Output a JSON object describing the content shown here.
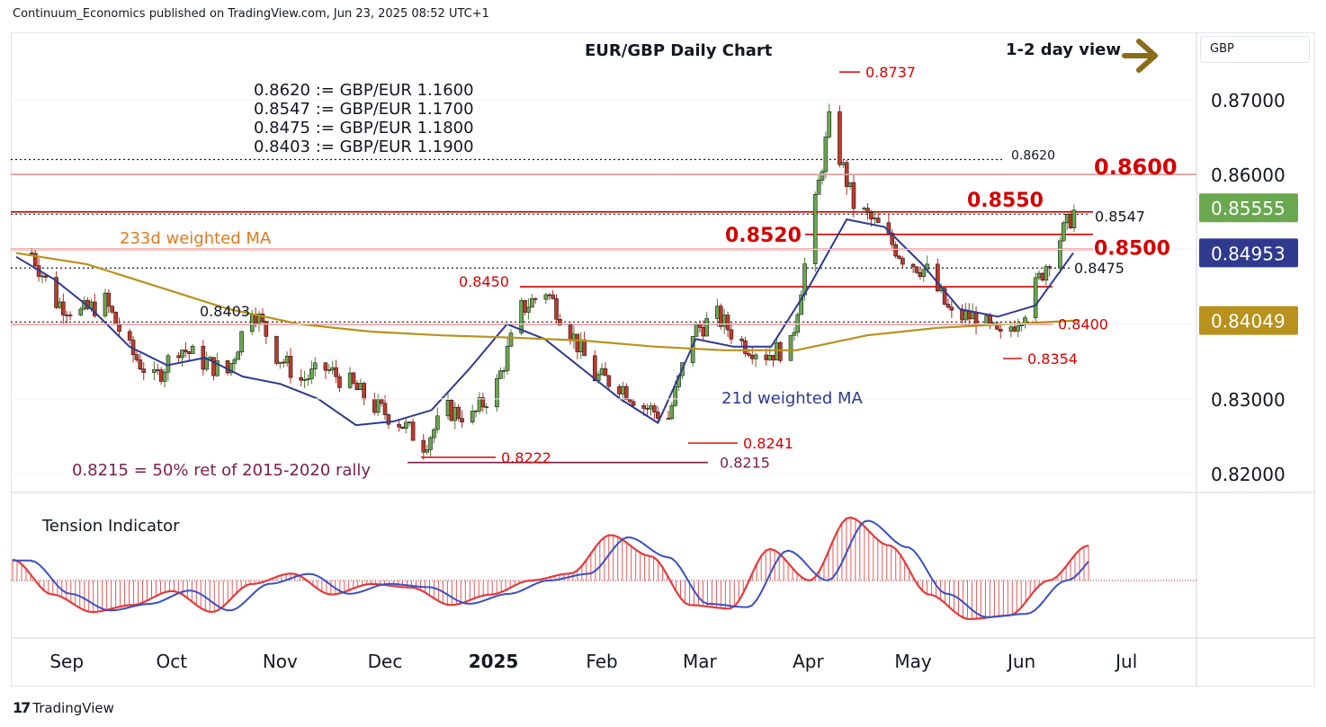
{
  "header": {
    "text": "Continuum_Economics published on TradingView.com, Jun 23, 2025 08:52 UTC+1"
  },
  "footer": {
    "brand": "TradingView",
    "logo_icon": "tradingview-logo-icon"
  },
  "symbol_box": {
    "currency": "GBP"
  },
  "annotations": {
    "title": "EUR/GBP Daily Chart",
    "view": "1-2 day view",
    "view_icon": "arrow-right-icon",
    "conversions": [
      "0.8620 := GBP/EUR 1.1600",
      "0.8547 := GBP/EUR 1.1700",
      "0.8475 := GBP/EUR 1.1800",
      "0.8403 := GBP/EUR 1.1900"
    ],
    "ma233_label": "233d weighted MA",
    "ma21_label": "21d weighted MA",
    "retracement_note": "0.8215 = 50% ret of 2015-2020 rally",
    "tension_label": "Tension Indicator"
  },
  "colors": {
    "bull": "#4e7c35",
    "bear": "#b22424",
    "ma21": "#2f3a8f",
    "ma233": "#b8921c",
    "resistance": "#d40000",
    "text": "#131722",
    "ret_line": "#7a1f4a"
  },
  "chart_data": {
    "type": "candlestick",
    "title": "EUR/GBP Daily Chart",
    "x_axis": {
      "ticks": [
        "Sep",
        "Oct",
        "Nov",
        "Dec",
        "2025",
        "Feb",
        "Mar",
        "Apr",
        "May",
        "Jun",
        "Jul"
      ]
    },
    "y_axis": {
      "ticks": [
        "0.87000",
        "0.86000",
        "0.85000",
        "0.84000",
        "0.83000",
        "0.82000"
      ],
      "range": [
        0.8175,
        0.879
      ]
    },
    "price_labels": [
      {
        "label": "0.85555",
        "value": 0.85555,
        "color": "#6aa84f"
      },
      {
        "label": "0.84953",
        "value": 0.84953,
        "color": "#2f3a8f"
      },
      {
        "label": "0.84049",
        "value": 0.84049,
        "color": "#b8921c"
      }
    ],
    "levels": [
      {
        "value": 0.862,
        "label": "0.8620",
        "style": "dotted",
        "color": "#131722"
      },
      {
        "value": 0.86,
        "label": "0.8600",
        "style": "solid",
        "color": "#d40000"
      },
      {
        "value": 0.855,
        "label": "0.8550",
        "style": "solid",
        "color": "#d40000"
      },
      {
        "value": 0.8547,
        "label": "0.8547",
        "style": "dotted",
        "color": "#131722"
      },
      {
        "value": 0.852,
        "label": "0.8520",
        "style": "solid",
        "color": "#d40000"
      },
      {
        "value": 0.85,
        "label": "0.8500",
        "style": "solid",
        "color": "#d40000"
      },
      {
        "value": 0.8475,
        "label": "0.8475",
        "style": "dotted",
        "color": "#131722"
      },
      {
        "value": 0.845,
        "label": "0.8450",
        "style": "solid",
        "color": "#d40000"
      },
      {
        "value": 0.8403,
        "label": "0.8403",
        "style": "dotted",
        "color": "#131722"
      },
      {
        "value": 0.84,
        "label": "0.8400",
        "style": "solid",
        "color": "#d40000"
      },
      {
        "value": 0.8215,
        "label": "0.8215",
        "style": "solid",
        "color": "#7a1f4a"
      }
    ],
    "point_labels": [
      {
        "label": "0.8737",
        "value": 0.8737
      },
      {
        "label": "0.8354",
        "value": 0.8354
      },
      {
        "label": "0.8241",
        "value": 0.8241
      },
      {
        "label": "0.8222",
        "value": 0.8222
      }
    ],
    "close_path": [
      [
        "2024-08-26",
        0.8495
      ],
      [
        "2024-09-02",
        0.843
      ],
      [
        "2024-09-09",
        0.8415
      ],
      [
        "2024-09-16",
        0.843
      ],
      [
        "2024-09-23",
        0.8365
      ],
      [
        "2024-09-30",
        0.8325
      ],
      [
        "2024-10-07",
        0.837
      ],
      [
        "2024-10-14",
        0.835
      ],
      [
        "2024-10-21",
        0.8335
      ],
      [
        "2024-10-28",
        0.8425
      ],
      [
        "2024-11-04",
        0.836
      ],
      [
        "2024-11-11",
        0.8325
      ],
      [
        "2024-11-18",
        0.834
      ],
      [
        "2024-11-25",
        0.832
      ],
      [
        "2024-12-02",
        0.829
      ],
      [
        "2024-12-09",
        0.827
      ],
      [
        "2024-12-16",
        0.824
      ],
      [
        "2024-12-23",
        0.8285
      ],
      [
        "2024-12-30",
        0.8275
      ],
      [
        "2025-01-06",
        0.832
      ],
      [
        "2025-01-13",
        0.842
      ],
      [
        "2025-01-20",
        0.8445
      ],
      [
        "2025-01-27",
        0.839
      ],
      [
        "2025-02-03",
        0.833
      ],
      [
        "2025-02-10",
        0.832
      ],
      [
        "2025-02-17",
        0.829
      ],
      [
        "2025-02-24",
        0.8275
      ],
      [
        "2025-03-03",
        0.839
      ],
      [
        "2025-03-10",
        0.841
      ],
      [
        "2025-03-17",
        0.8375
      ],
      [
        "2025-03-24",
        0.836
      ],
      [
        "2025-03-31",
        0.837
      ],
      [
        "2025-04-07",
        0.856
      ],
      [
        "2025-04-11",
        0.867
      ],
      [
        "2025-04-18",
        0.856
      ],
      [
        "2025-04-25",
        0.853
      ],
      [
        "2025-05-02",
        0.849
      ],
      [
        "2025-05-09",
        0.847
      ],
      [
        "2025-05-16",
        0.841
      ],
      [
        "2025-05-23",
        0.841
      ],
      [
        "2025-05-30",
        0.838
      ],
      [
        "2025-06-06",
        0.842
      ],
      [
        "2025-06-13",
        0.849
      ],
      [
        "2025-06-20",
        0.855
      ]
    ],
    "series": [
      {
        "name": "21d weighted MA",
        "values": [
          0.849,
          0.846,
          0.842,
          0.837,
          0.8345,
          0.8355,
          0.833,
          0.832,
          0.83,
          0.8265,
          0.827,
          0.8285,
          0.834,
          0.84,
          0.838,
          0.834,
          0.83,
          0.8268,
          0.838,
          0.837,
          0.837,
          0.845,
          0.854,
          0.853,
          0.848,
          0.842,
          0.841,
          0.8425,
          0.8495
        ]
      },
      {
        "name": "233d weighted MA",
        "values": [
          0.8495,
          0.848,
          0.845,
          0.842,
          0.84,
          0.839,
          0.8385,
          0.8382,
          0.8378,
          0.837,
          0.8365,
          0.8365,
          0.8385,
          0.8395,
          0.84,
          0.8405
        ]
      },
      {
        "name": "Tension Indicator",
        "values": [
          0.3,
          -0.2,
          -0.45,
          -0.35,
          -0.15,
          -0.45,
          -0.05,
          0.1,
          -0.2,
          -0.05,
          -0.1,
          -0.35,
          -0.2,
          0.0,
          0.1,
          0.65,
          0.35,
          -0.35,
          -0.4,
          0.45,
          0.0,
          0.9,
          0.5,
          -0.2,
          -0.55,
          -0.5,
          0.0,
          0.5
        ]
      }
    ]
  }
}
